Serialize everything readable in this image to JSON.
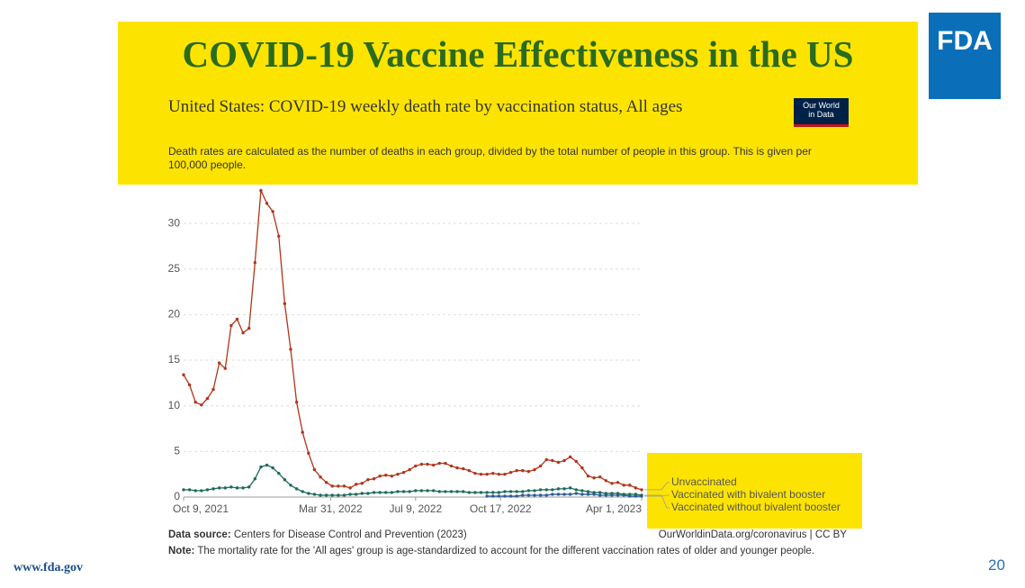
{
  "slide": {
    "title": "COVID-19 Vaccine Effectiveness in the US",
    "logo": "FDA",
    "footer_url": "www.fda.gov",
    "page_number": "20"
  },
  "chart_data": {
    "type": "line",
    "title": "United States: COVID-19 weekly death rate by vaccination status, All ages",
    "subtitle": "Death rates are calculated as the number of deaths in each group, divided by the total number of people in this group. This is given per 100,000 people.",
    "badge": [
      "Our World",
      "in Data"
    ],
    "source_label": "Data source:",
    "source": "Centers for Disease Control and Prevention (2023)",
    "credit": "OurWorldinData.org/coronavirus | CC BY",
    "note_label": "Note:",
    "note": "The mortality rate for the 'All ages' group is age-standardized to account for the different vaccination rates of older and younger people.",
    "x": [
      "2021-10-09",
      "2021-10-16",
      "2021-10-23",
      "2021-10-30",
      "2021-11-06",
      "2021-11-13",
      "2021-11-20",
      "2021-11-27",
      "2021-12-04",
      "2021-12-11",
      "2021-12-18",
      "2021-12-25",
      "2022-01-01",
      "2022-01-08",
      "2022-01-15",
      "2022-01-22",
      "2022-01-29",
      "2022-02-05",
      "2022-02-12",
      "2022-02-19",
      "2022-02-26",
      "2022-03-05",
      "2022-03-12",
      "2022-03-19",
      "2022-03-26",
      "2022-04-02",
      "2022-04-09",
      "2022-04-16",
      "2022-04-23",
      "2022-04-30",
      "2022-05-07",
      "2022-05-14",
      "2022-05-21",
      "2022-05-28",
      "2022-06-04",
      "2022-06-11",
      "2022-06-18",
      "2022-06-25",
      "2022-07-02",
      "2022-07-09",
      "2022-07-16",
      "2022-07-23",
      "2022-07-30",
      "2022-08-06",
      "2022-08-13",
      "2022-08-20",
      "2022-08-27",
      "2022-09-03",
      "2022-09-10",
      "2022-09-17",
      "2022-09-24",
      "2022-10-01",
      "2022-10-08",
      "2022-10-15",
      "2022-10-22",
      "2022-10-29",
      "2022-11-05",
      "2022-11-12",
      "2022-11-19",
      "2022-11-26",
      "2022-12-03",
      "2022-12-10",
      "2022-12-17",
      "2022-12-24",
      "2022-12-31",
      "2023-01-07",
      "2023-01-14",
      "2023-01-21",
      "2023-01-28",
      "2023-02-04",
      "2023-02-11",
      "2023-02-18",
      "2023-02-25",
      "2023-03-04",
      "2023-03-11",
      "2023-03-18",
      "2023-03-25",
      "2023-04-01"
    ],
    "xlim": [
      "2021-10-09",
      "2023-04-01"
    ],
    "xticks": [
      {
        "value": "2021-10-09",
        "label": "Oct 9, 2021"
      },
      {
        "value": "2022-03-31",
        "label": "Mar 31, 2022"
      },
      {
        "value": "2022-07-09",
        "label": "Jul 9, 2022"
      },
      {
        "value": "2022-10-17",
        "label": "Oct 17, 2022"
      },
      {
        "value": "2023-04-01",
        "label": "Apr 1, 2023"
      }
    ],
    "ylim": [
      0,
      35
    ],
    "yticks": [
      0,
      5,
      10,
      15,
      20,
      25,
      30
    ],
    "grid": true,
    "series": [
      {
        "name": "Unvaccinated",
        "color": "#b0351a",
        "values": [
          13.4,
          12.3,
          10.4,
          10.1,
          10.8,
          11.8,
          14.7,
          14.1,
          18.8,
          19.5,
          18.0,
          18.5,
          25.7,
          33.6,
          32.2,
          31.3,
          28.6,
          21.2,
          16.2,
          10.4,
          7.1,
          4.8,
          3.0,
          2.2,
          1.6,
          1.2,
          1.2,
          1.2,
          1.0,
          1.4,
          1.5,
          1.9,
          2.0,
          2.3,
          2.4,
          2.3,
          2.5,
          2.7,
          3.0,
          3.4,
          3.6,
          3.6,
          3.5,
          3.7,
          3.7,
          3.4,
          3.2,
          3.1,
          2.9,
          2.6,
          2.5,
          2.5,
          2.6,
          2.5,
          2.5,
          2.7,
          2.9,
          2.9,
          2.8,
          3.0,
          3.4,
          4.1,
          4.0,
          3.8,
          4.0,
          4.4,
          3.9,
          3.2,
          2.3,
          2.1,
          2.2,
          1.8,
          1.5,
          1.6,
          1.3,
          1.3,
          1.0,
          0.8
        ]
      },
      {
        "name": "Vaccinated with bivalent booster",
        "color": "#2b5c9c",
        "values": [
          null,
          null,
          null,
          null,
          null,
          null,
          null,
          null,
          null,
          null,
          null,
          null,
          null,
          null,
          null,
          null,
          null,
          null,
          null,
          null,
          null,
          null,
          null,
          null,
          null,
          null,
          null,
          null,
          null,
          null,
          null,
          null,
          null,
          null,
          null,
          null,
          null,
          null,
          null,
          null,
          null,
          null,
          null,
          null,
          null,
          null,
          null,
          null,
          null,
          null,
          null,
          0.1,
          0.1,
          0.1,
          0.1,
          0.1,
          0.1,
          0.2,
          0.2,
          0.2,
          0.2,
          0.2,
          0.3,
          0.3,
          0.3,
          0.3,
          0.4,
          0.3,
          0.3,
          0.3,
          0.2,
          0.2,
          0.2,
          0.2,
          0.2,
          0.1,
          0.1,
          0.1
        ]
      },
      {
        "name": "Vaccinated without bivalent booster",
        "color": "#1c6b5c",
        "values": [
          0.8,
          0.8,
          0.7,
          0.7,
          0.8,
          0.9,
          1.0,
          1.0,
          1.1,
          1.0,
          1.0,
          1.1,
          2.0,
          3.3,
          3.5,
          3.2,
          2.6,
          1.9,
          1.3,
          0.9,
          0.6,
          0.4,
          0.3,
          0.2,
          0.2,
          0.2,
          0.2,
          0.2,
          0.3,
          0.3,
          0.4,
          0.4,
          0.5,
          0.5,
          0.5,
          0.5,
          0.6,
          0.6,
          0.6,
          0.7,
          0.7,
          0.7,
          0.7,
          0.6,
          0.6,
          0.6,
          0.6,
          0.6,
          0.5,
          0.5,
          0.5,
          0.5,
          0.5,
          0.5,
          0.6,
          0.6,
          0.6,
          0.6,
          0.7,
          0.7,
          0.8,
          0.8,
          0.8,
          0.9,
          0.9,
          1.0,
          0.8,
          0.7,
          0.6,
          0.5,
          0.5,
          0.4,
          0.4,
          0.4,
          0.3,
          0.3,
          0.3,
          0.2
        ]
      }
    ]
  }
}
